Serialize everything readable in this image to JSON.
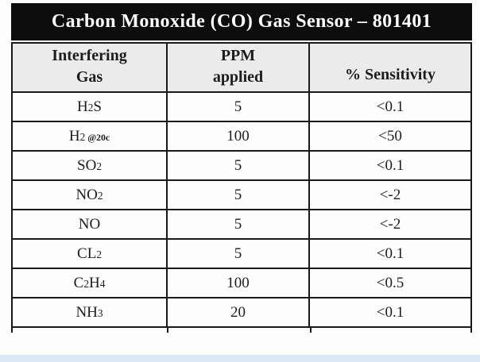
{
  "page": {
    "background_color": "#fdfdfd",
    "bottom_strip_color": "#dce8f5"
  },
  "table": {
    "title": "Carbon Monoxide (CO) Gas Sensor – 801401",
    "colors": {
      "title_bg": "#0d0d0d",
      "title_text": "#ffffff",
      "header_bg": "#ebebeb",
      "row_bg": "#fdfdfd",
      "border": "#1a1a1a"
    },
    "columns": [
      {
        "line1": "Interfering",
        "line2": "Gas"
      },
      {
        "line1": "PPM",
        "line2": "applied"
      },
      {
        "line1": "",
        "line2": "% Sensitivity"
      }
    ],
    "rows": [
      {
        "gas": [
          [
            "H"
          ],
          [
            "2",
            "sub"
          ],
          [
            "S"
          ]
        ],
        "ppm": "5",
        "sensitivity": "<0.1"
      },
      {
        "gas": [
          [
            "H"
          ],
          [
            "2",
            "sub"
          ],
          [
            " @20c",
            "small"
          ]
        ],
        "ppm": "100",
        "sensitivity": "<50"
      },
      {
        "gas": [
          [
            "SO"
          ],
          [
            "2",
            "sub"
          ]
        ],
        "ppm": "5",
        "sensitivity": "<0.1"
      },
      {
        "gas": [
          [
            "NO"
          ],
          [
            "2",
            "sub"
          ]
        ],
        "ppm": "5",
        "sensitivity": "<-2"
      },
      {
        "gas": [
          [
            "NO"
          ]
        ],
        "ppm": "5",
        "sensitivity": "<-2"
      },
      {
        "gas": [
          [
            "CL"
          ],
          [
            "2",
            "sub"
          ]
        ],
        "ppm": "5",
        "sensitivity": "<0.1"
      },
      {
        "gas": [
          [
            "C"
          ],
          [
            "2",
            "sub"
          ],
          [
            "H"
          ],
          [
            "4",
            "sub"
          ]
        ],
        "ppm": "100",
        "sensitivity": "<0.5"
      },
      {
        "gas": [
          [
            "NH"
          ],
          [
            "3",
            "sub"
          ]
        ],
        "ppm": "20",
        "sensitivity": "<0.1"
      }
    ]
  }
}
